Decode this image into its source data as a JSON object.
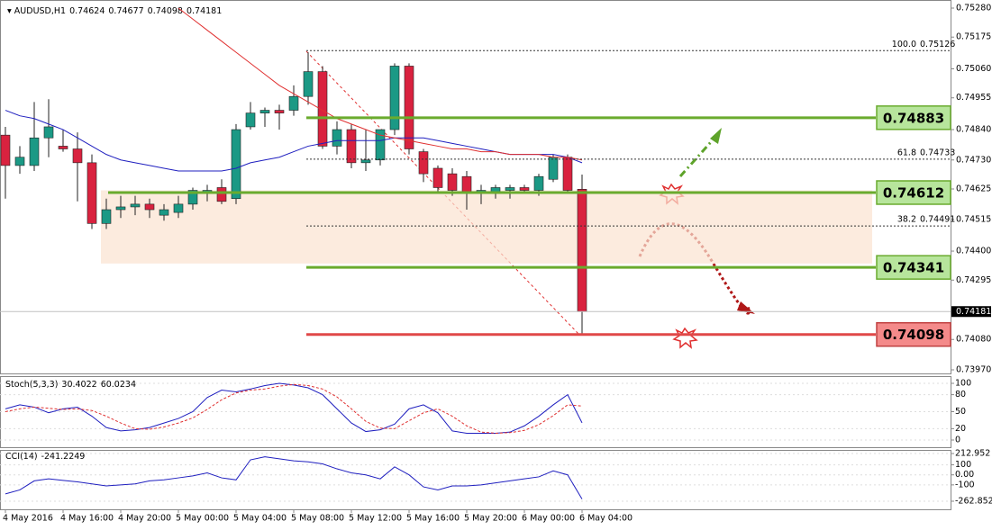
{
  "chart_data": {
    "type": "candlestick",
    "symbol": "AUDUSD,H1",
    "categories": [
      "4 May 2016",
      null,
      null,
      null,
      "4 May 16:00",
      null,
      null,
      null,
      "4 May 20:00",
      null,
      null,
      null,
      "5 May 00:00",
      null,
      null,
      null,
      "5 May 04:00",
      null,
      null,
      null,
      "5 May 08:00",
      null,
      null,
      null,
      "5 May 12:00",
      null,
      null,
      null,
      "5 May 16:00",
      null,
      null,
      null,
      "5 May 20:00",
      null,
      null,
      null,
      "6 May 00:00",
      null,
      null,
      null,
      "6 May 04:00"
    ],
    "open": [
      0.7482,
      0.7471,
      0.7471,
      0.7481,
      0.7478,
      0.7477,
      0.7472,
      0.745,
      0.7455,
      0.7456,
      0.7457,
      0.7453,
      0.7454,
      0.7457,
      0.7461,
      0.7463,
      0.7459,
      0.7485,
      0.749,
      0.7491,
      0.7491,
      0.7496,
      0.7505,
      0.7478,
      0.7484,
      0.7472,
      0.7473,
      0.7484,
      0.7507,
      0.7476,
      0.747,
      0.7468,
      0.7467,
      0.7461,
      0.7461,
      0.7462,
      0.7463,
      0.7462,
      0.7466,
      0.7474,
      0.74624
    ],
    "high": [
      0.7485,
      0.7478,
      0.7494,
      0.7495,
      0.7484,
      0.7483,
      0.7475,
      0.7459,
      0.746,
      0.746,
      0.7459,
      0.7457,
      0.746,
      0.7463,
      0.7464,
      0.7466,
      0.7486,
      0.7494,
      0.7492,
      0.7493,
      0.75,
      0.7512,
      0.7507,
      0.7487,
      0.7486,
      0.7484,
      0.7484,
      0.7508,
      0.7508,
      0.7477,
      0.7471,
      0.747,
      0.7469,
      0.7464,
      0.7464,
      0.7464,
      0.7464,
      0.7468,
      0.7475,
      0.7475,
      0.74677
    ],
    "low": [
      0.7459,
      0.7468,
      0.7469,
      0.7474,
      0.7476,
      0.7458,
      0.7448,
      0.7448,
      0.7452,
      0.7453,
      0.7452,
      0.7451,
      0.7452,
      0.7455,
      0.7458,
      0.7457,
      0.7457,
      0.7484,
      0.7485,
      0.7484,
      0.7489,
      0.7493,
      0.7477,
      0.7475,
      0.747,
      0.7469,
      0.7471,
      0.7482,
      0.7475,
      0.7465,
      0.7461,
      0.746,
      0.7455,
      0.7457,
      0.7459,
      0.7459,
      0.7461,
      0.746,
      0.7465,
      0.7461,
      0.74098
    ],
    "close": [
      0.7471,
      0.7474,
      0.7481,
      0.7485,
      0.7477,
      0.7472,
      0.745,
      0.7455,
      0.7456,
      0.7457,
      0.7455,
      0.7455,
      0.7457,
      0.7462,
      0.7462,
      0.7458,
      0.7484,
      0.749,
      0.7491,
      0.749,
      0.7496,
      0.7505,
      0.7478,
      0.7484,
      0.7472,
      0.7473,
      0.7484,
      0.7507,
      0.7477,
      0.7468,
      0.7463,
      0.7462,
      0.7461,
      0.7462,
      0.7463,
      0.7463,
      0.7462,
      0.7467,
      0.7474,
      0.7462,
      0.74181
    ],
    "up_color": "#1b9985",
    "down_color": "#d9223f",
    "ylim": [
      0.7397,
      0.7528
    ],
    "yticks": [
      {
        "value": 0.7528,
        "label": "0.75280"
      },
      0.75175,
      {
        "value": 0.7506,
        "label": "0.75060"
      },
      0.74955,
      {
        "value": 0.7484,
        "label": "0.74840"
      },
      {
        "value": 0.7473,
        "label": "0.74730"
      },
      0.74625,
      0.74515,
      {
        "value": 0.744,
        "label": "0.74400"
      },
      0.74295,
      {
        "value": 0.7408,
        "label": "0.74080"
      },
      {
        "value": 0.7397,
        "label": "0.73970"
      }
    ],
    "overlays": [
      {
        "color": "#1f1fbf",
        "values": [
          0.7491,
          0.7489,
          0.7488,
          0.7486,
          0.7484,
          0.7481,
          0.7478,
          0.7475,
          0.7473,
          0.7472,
          0.7471,
          0.747,
          0.7469,
          0.7469,
          0.7469,
          0.7469,
          0.747,
          0.7472,
          0.7473,
          0.7474,
          0.7476,
          0.7478,
          0.7479,
          0.748,
          0.748,
          0.748,
          0.748,
          0.7481,
          0.7481,
          0.7481,
          0.748,
          0.7479,
          0.7478,
          0.7477,
          0.7476,
          0.7475,
          0.7475,
          0.7475,
          0.7475,
          0.7474,
          0.7472
        ]
      },
      {
        "color": "#e03030",
        "values": [
          null,
          null,
          null,
          null,
          null,
          null,
          null,
          null,
          null,
          null,
          null,
          null,
          0.7528,
          0.7524,
          0.752,
          0.7516,
          0.7512,
          0.7508,
          0.7504,
          0.75,
          0.7497,
          0.7494,
          0.7491,
          0.7488,
          0.7486,
          0.7484,
          0.7482,
          0.7481,
          0.748,
          0.7479,
          0.7478,
          0.7477,
          0.7477,
          0.7476,
          0.7476,
          0.7475,
          0.7475,
          0.7475,
          0.7474,
          0.7474,
          0.7473
        ]
      }
    ],
    "zone": [
      0.74355,
      0.7462
    ],
    "levels": [
      {
        "value": 0.74883,
        "color": "#6aab2e"
      },
      {
        "value": 0.74612,
        "color": "#6aab2e"
      },
      {
        "value": 0.74341,
        "color": "#6aab2e"
      },
      {
        "value": 0.74098,
        "color": "#e04848"
      }
    ],
    "fib": [
      {
        "level": "100.0",
        "price": 0.75126
      },
      {
        "level": "61.8",
        "price": 0.74733
      },
      {
        "level": "38.2",
        "price": 0.74491
      }
    ],
    "indicators": [
      {
        "name": "Stoch(5,3,3)",
        "ylim": [
          0,
          100
        ],
        "yticks": [
          0,
          20,
          50,
          80,
          100
        ],
        "series": [
          {
            "color": "#1f1fbf",
            "values": [
              55,
              62,
              58,
              48,
              55,
              58,
              42,
              22,
              16,
              18,
              22,
              30,
              38,
              50,
              75,
              88,
              85,
              90,
              96,
              100,
              97,
              92,
              80,
              55,
              30,
              15,
              18,
              28,
              55,
              62,
              48,
              16,
              12,
              12,
              12,
              14,
              25,
              42,
              62,
              80,
              30.4022
            ]
          },
          {
            "color": "#e03030",
            "dashed": true,
            "values": [
              50,
              55,
              58,
              56,
              54,
              55,
              52,
              42,
              30,
              20,
              19,
              23,
              30,
              39,
              54,
              71,
              83,
              88,
              90,
              95,
              98,
              96,
              90,
              76,
              55,
              33,
              21,
              20,
              34,
              48,
              55,
              42,
              25,
              14,
              12,
              13,
              17,
              27,
              43,
              62,
              60.0234
            ]
          }
        ]
      },
      {
        "name": "CCI(14)",
        "ylim": [
          -262.8524,
          212.952
        ],
        "yticks": [
          -262.8524,
          -100,
          {
            "value": 0,
            "label": "0.00"
          },
          100,
          212.952
        ],
        "series": [
          {
            "color": "#1f1fbf",
            "values": [
              -190,
              -150,
              -60,
              -40,
              -55,
              -70,
              -90,
              -110,
              -100,
              -90,
              -60,
              -50,
              -30,
              -10,
              20,
              -30,
              -50,
              150,
              180,
              160,
              140,
              130,
              110,
              60,
              20,
              0,
              -40,
              80,
              0,
              -120,
              -150,
              -110,
              -110,
              -100,
              -80,
              -60,
              -40,
              -20,
              40,
              0,
              -241.2249
            ]
          }
        ]
      }
    ]
  }
}
